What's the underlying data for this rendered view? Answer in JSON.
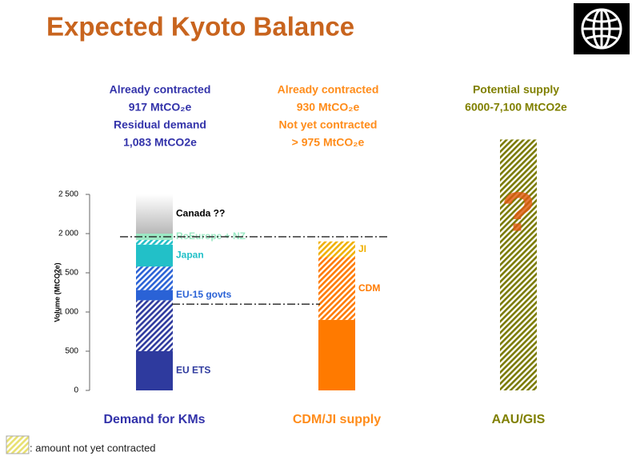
{
  "chart_data": {
    "type": "stacked-bar",
    "title": "Expected Kyoto Balance",
    "y_label": "Volume (MtCO2e)",
    "ylim": [
      0,
      2500
    ],
    "yticks": [
      0,
      500,
      {
        "value": 1000,
        "label": "1 000"
      },
      {
        "value": 1500,
        "label": "1 500"
      },
      {
        "value": 2000,
        "label": "2 000"
      },
      {
        "value": 2500,
        "label": "2 500"
      }
    ],
    "reference_lines": [
      1960,
      1100
    ],
    "legend": {
      "label": ": amount not yet contracted",
      "color": "#e8e070"
    },
    "columns": [
      {
        "name": "Demand for KMs",
        "color": "#3333aa",
        "header": [
          "Already contracted",
          "917 MtCO₂e",
          "Residual demand",
          "1,083 MtCO2e"
        ],
        "segments": [
          {
            "value": 500,
            "pattern": "solid",
            "color": "#2e3a9e",
            "label": "EU ETS"
          },
          {
            "value": 650,
            "pattern": "hatch",
            "color": "#2e3a9e"
          },
          {
            "value": 130,
            "pattern": "solid",
            "color": "#2a62d6",
            "label": "EU-15 govts"
          },
          {
            "value": 300,
            "pattern": "hatch",
            "color": "#2a62d6"
          },
          {
            "value": 280,
            "pattern": "solid",
            "color": "#22c0c8",
            "label": "Japan"
          },
          {
            "value": 60,
            "pattern": "hatch",
            "color": "#22c0c8"
          },
          {
            "value": 80,
            "pattern": "solid",
            "color": "#9ce8c4",
            "label": "RoEurope + NZ"
          },
          {
            "value": 500,
            "pattern": "fade",
            "color": "#b8b8b8",
            "label": "Canada ??"
          }
        ]
      },
      {
        "name": "CDM/JI supply",
        "color": "#ff8c1a",
        "header": [
          "Already contracted",
          "930 MtCO₂e",
          "Not yet contracted",
          "> 975 MtCO₂e"
        ],
        "segments": [
          {
            "value": 900,
            "pattern": "solid",
            "color": "#ff7a00"
          },
          {
            "value": 800,
            "pattern": "hatch",
            "color": "#ff7a00",
            "label": "CDM"
          },
          {
            "value": 200,
            "pattern": "hatch",
            "color": "#f0b000",
            "label": "JI"
          }
        ]
      },
      {
        "name": "AAU/GIS",
        "color": "#808000",
        "header": [
          "Potential supply",
          "6000-7,100 MtCO2e"
        ],
        "mark_text": "?",
        "segments": [
          {
            "value": 3200,
            "pattern": "hatch",
            "color": "#7a7a00"
          }
        ]
      }
    ]
  }
}
